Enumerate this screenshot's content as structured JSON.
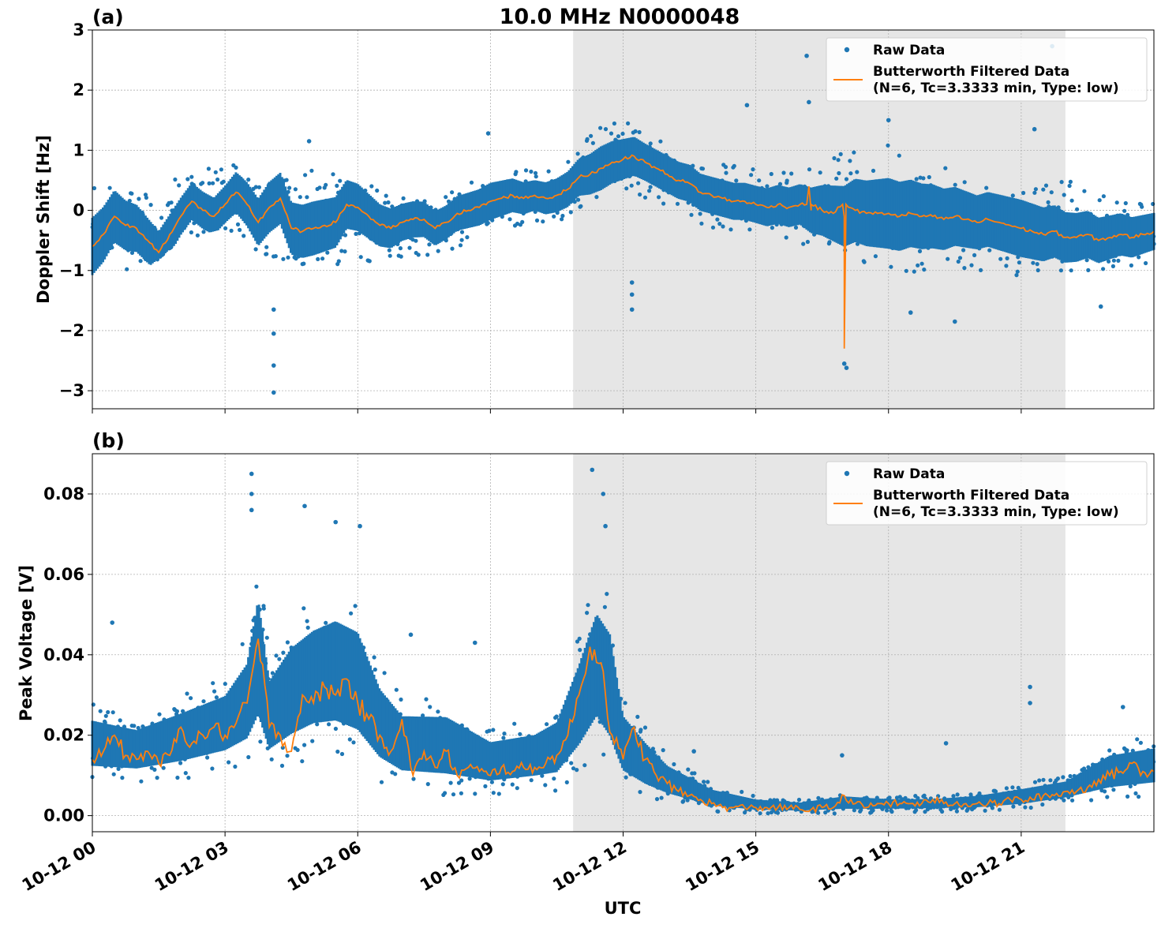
{
  "figure": {
    "title": "10.0 MHz N0000048",
    "xlabel": "UTC",
    "x_tick_labels": [
      "10-12 00",
      "10-12 03",
      "10-12 06",
      "10-12 09",
      "10-12 12",
      "10-12 15",
      "10-12 18",
      "10-12 21"
    ],
    "shaded_interval_hours": [
      10.87,
      22.0
    ]
  },
  "colors": {
    "raw": "#1f77b4",
    "filtered": "#ff7f0e",
    "shade": "#e6e6e6",
    "grid": "#b0b0b0"
  },
  "chart_data": [
    {
      "type": "scatter",
      "panel_label": "(a)",
      "title": "10.0 MHz N0000048",
      "xlabel": "",
      "ylabel": "Doppler Shift [Hz]",
      "x_unit": "hours UTC since 2024-10-12 00:00",
      "xlim": [
        0,
        24
      ],
      "ylim": [
        -3.3,
        3.0
      ],
      "y_ticks": [
        -3,
        -2,
        -1,
        0,
        1,
        2,
        3
      ],
      "y_tick_labels": [
        "−3",
        "−2",
        "−1",
        "0",
        "1",
        "2",
        "3"
      ],
      "grid": true,
      "legend_position": "top-right",
      "legend": [
        "Raw Data",
        "Butterworth Filtered Data\n(N=6, Tc=3.3333 min, Type: low)"
      ],
      "series": [
        {
          "name": "Butterworth Filtered Data (N=6, Tc=3.3333 min, Type: low)",
          "x": [
            0,
            0.25,
            0.5,
            0.75,
            1,
            1.25,
            1.5,
            1.75,
            2,
            2.25,
            2.5,
            2.75,
            3,
            3.25,
            3.5,
            3.75,
            4,
            4.25,
            4.5,
            4.75,
            5,
            5.25,
            5.5,
            5.75,
            6,
            6.25,
            6.5,
            6.75,
            7,
            7.25,
            7.5,
            7.75,
            8,
            8.25,
            8.5,
            8.75,
            9,
            9.25,
            9.5,
            9.75,
            10,
            10.25,
            10.5,
            10.75,
            11,
            11.25,
            11.5,
            11.75,
            12,
            12.25,
            12.5,
            12.75,
            13,
            13.25,
            13.5,
            13.75,
            14,
            14.25,
            14.5,
            14.75,
            15,
            15.25,
            15.5,
            15.75,
            16,
            16.25,
            16.5,
            16.75,
            17,
            17.25,
            17.5,
            17.75,
            18,
            18.25,
            18.5,
            18.75,
            19,
            19.25,
            19.5,
            19.75,
            20,
            20.25,
            20.5,
            20.75,
            21,
            21.25,
            21.5,
            21.75,
            22,
            22.25,
            22.5,
            22.75,
            23,
            23.25,
            23.5,
            23.75,
            24
          ],
          "y": [
            -0.6,
            -0.4,
            -0.1,
            -0.25,
            -0.3,
            -0.5,
            -0.7,
            -0.4,
            -0.1,
            0.15,
            0.0,
            -0.1,
            0.1,
            0.3,
            0.1,
            -0.2,
            0.05,
            0.2,
            -0.3,
            -0.35,
            -0.3,
            -0.25,
            -0.2,
            0.1,
            0.05,
            -0.1,
            -0.25,
            -0.3,
            -0.2,
            -0.15,
            -0.15,
            -0.3,
            -0.2,
            -0.05,
            0.0,
            0.05,
            0.15,
            0.2,
            0.25,
            0.2,
            0.25,
            0.2,
            0.25,
            0.35,
            0.55,
            0.6,
            0.7,
            0.8,
            0.85,
            0.9,
            0.8,
            0.7,
            0.6,
            0.5,
            0.45,
            0.3,
            0.25,
            0.2,
            0.15,
            0.15,
            0.1,
            0.05,
            0.1,
            0.05,
            0.1,
            0.0,
            0.0,
            -0.05,
            -0.1,
            0.0,
            -0.05,
            -0.05,
            -0.05,
            -0.1,
            -0.05,
            -0.1,
            -0.1,
            -0.15,
            -0.1,
            -0.15,
            -0.2,
            -0.15,
            -0.2,
            -0.25,
            -0.3,
            -0.35,
            -0.4,
            -0.35,
            -0.45,
            -0.45,
            -0.4,
            -0.5,
            -0.45,
            -0.4,
            -0.45,
            -0.4,
            -0.35
          ],
          "features": [
            {
              "x": 17.0,
              "y": -2.3,
              "description": "sharp negative spike near 17:00"
            },
            {
              "x": 16.2,
              "y": 0.4,
              "description": "small positive bump near 16:10"
            }
          ]
        },
        {
          "name": "Raw Data",
          "band_x": [
            0,
            1,
            2,
            3,
            4,
            5,
            6,
            7,
            8,
            9,
            10,
            10.5,
            11,
            11.5,
            12,
            12.5,
            13,
            14,
            15,
            16,
            17,
            18,
            19,
            20,
            21,
            22,
            23,
            24
          ],
          "band_low": [
            -1.1,
            -1.1,
            -0.5,
            -0.3,
            -0.9,
            -0.9,
            -0.9,
            -0.9,
            -0.7,
            -0.4,
            -0.2,
            -0.2,
            0.0,
            0.1,
            0.3,
            0.2,
            0.0,
            -0.3,
            -0.4,
            -0.6,
            -0.8,
            -1.0,
            -1.1,
            -1.0,
            -1.1,
            -1.0,
            -1.0,
            -0.9
          ],
          "band_high": [
            0.6,
            0.3,
            0.6,
            0.8,
            0.6,
            0.7,
            0.5,
            0.2,
            0.3,
            0.7,
            0.7,
            0.8,
            1.1,
            1.4,
            1.5,
            1.3,
            1.1,
            0.8,
            0.7,
            0.6,
            1.0,
            1.1,
            0.8,
            0.6,
            0.6,
            0.5,
            0.3,
            0.2
          ],
          "outliers": [
            {
              "x": 4.1,
              "y": -3.03
            },
            {
              "x": 4.1,
              "y": -2.58
            },
            {
              "x": 4.1,
              "y": -2.05
            },
            {
              "x": 4.1,
              "y": -1.65
            },
            {
              "x": 4.9,
              "y": 1.15
            },
            {
              "x": 8.95,
              "y": 1.28
            },
            {
              "x": 12.2,
              "y": -1.2
            },
            {
              "x": 12.2,
              "y": -1.4
            },
            {
              "x": 12.2,
              "y": -1.65
            },
            {
              "x": 14.8,
              "y": 1.75
            },
            {
              "x": 16.15,
              "y": 2.57
            },
            {
              "x": 16.2,
              "y": 1.8
            },
            {
              "x": 17.0,
              "y": -2.55
            },
            {
              "x": 17.05,
              "y": -2.62
            },
            {
              "x": 18.0,
              "y": 1.5
            },
            {
              "x": 18.5,
              "y": -1.7
            },
            {
              "x": 19.5,
              "y": -1.85
            },
            {
              "x": 21.7,
              "y": 2.73
            },
            {
              "x": 22.8,
              "y": -1.6
            },
            {
              "x": 21.3,
              "y": 1.35
            }
          ]
        }
      ]
    },
    {
      "type": "scatter",
      "panel_label": "(b)",
      "title": "",
      "xlabel": "UTC",
      "ylabel": "Peak Voltage [V]",
      "x_unit": "hours UTC since 2024-10-12 00:00",
      "xlim": [
        0,
        24
      ],
      "ylim": [
        -0.004,
        0.09
      ],
      "y_ticks": [
        0.0,
        0.02,
        0.04,
        0.06,
        0.08
      ],
      "y_tick_labels": [
        "0.00",
        "0.02",
        "0.04",
        "0.06",
        "0.08"
      ],
      "grid": true,
      "legend_position": "top-right",
      "legend": [
        "Raw Data",
        "Butterworth Filtered Data\n(N=6, Tc=3.3333 min, Type: low)"
      ],
      "series": [
        {
          "name": "Butterworth Filtered Data (N=6, Tc=3.3333 min, Type: low)",
          "x": [
            0,
            0.25,
            0.5,
            0.75,
            1,
            1.25,
            1.5,
            1.75,
            2,
            2.25,
            2.5,
            2.75,
            3,
            3.25,
            3.5,
            3.75,
            4,
            4.25,
            4.5,
            4.75,
            5,
            5.25,
            5.5,
            5.75,
            6,
            6.25,
            6.5,
            6.75,
            7,
            7.25,
            7.5,
            7.75,
            8,
            8.25,
            8.5,
            8.75,
            9,
            9.25,
            9.5,
            9.75,
            10,
            10.25,
            10.5,
            10.75,
            11,
            11.25,
            11.5,
            11.75,
            12,
            12.25,
            12.5,
            12.75,
            13,
            13.25,
            13.5,
            13.75,
            14,
            14.25,
            14.5,
            14.75,
            15,
            15.25,
            15.5,
            15.75,
            16,
            16.25,
            16.5,
            16.75,
            17,
            17.25,
            17.5,
            17.75,
            18,
            18.25,
            18.5,
            18.75,
            19,
            19.25,
            19.5,
            19.75,
            20,
            20.25,
            20.5,
            20.75,
            21,
            21.25,
            21.5,
            21.75,
            22,
            22.25,
            22.5,
            22.75,
            23,
            23.25,
            23.5,
            23.75,
            24
          ],
          "y": [
            0.014,
            0.016,
            0.02,
            0.015,
            0.014,
            0.016,
            0.013,
            0.015,
            0.022,
            0.018,
            0.02,
            0.022,
            0.02,
            0.023,
            0.028,
            0.044,
            0.022,
            0.02,
            0.016,
            0.03,
            0.028,
            0.032,
            0.03,
            0.034,
            0.028,
            0.024,
            0.02,
            0.016,
            0.024,
            0.01,
            0.016,
            0.012,
            0.016,
            0.01,
            0.012,
            0.011,
            0.01,
            0.012,
            0.011,
            0.012,
            0.012,
            0.013,
            0.015,
            0.02,
            0.03,
            0.042,
            0.038,
            0.02,
            0.014,
            0.022,
            0.014,
            0.01,
            0.008,
            0.006,
            0.005,
            0.004,
            0.003,
            0.002,
            0.002,
            0.002,
            0.002,
            0.002,
            0.002,
            0.002,
            0.0015,
            0.0015,
            0.002,
            0.002,
            0.005,
            0.003,
            0.002,
            0.003,
            0.003,
            0.003,
            0.003,
            0.003,
            0.004,
            0.003,
            0.003,
            0.003,
            0.003,
            0.003,
            0.003,
            0.004,
            0.004,
            0.004,
            0.005,
            0.005,
            0.006,
            0.006,
            0.007,
            0.009,
            0.01,
            0.011,
            0.013,
            0.011,
            0.011
          ]
        },
        {
          "name": "Raw Data",
          "band_x": [
            0,
            1,
            2,
            3,
            3.5,
            3.75,
            4,
            4.5,
            5,
            5.5,
            6,
            6.5,
            7,
            8,
            9,
            10,
            10.5,
            11,
            11.4,
            11.7,
            12,
            12.5,
            13,
            14,
            15,
            16,
            17,
            18,
            19,
            20,
            21,
            22,
            23,
            24
          ],
          "band_low": [
            0.008,
            0.008,
            0.009,
            0.011,
            0.012,
            0.014,
            0.01,
            0.012,
            0.014,
            0.014,
            0.012,
            0.008,
            0.006,
            0.005,
            0.005,
            0.006,
            0.006,
            0.01,
            0.015,
            0.01,
            0.006,
            0.004,
            0.003,
            0.001,
            0.0005,
            0.0005,
            0.0005,
            0.0008,
            0.001,
            0.001,
            0.0015,
            0.003,
            0.004,
            0.005
          ],
          "band_high": [
            0.028,
            0.025,
            0.03,
            0.035,
            0.045,
            0.065,
            0.04,
            0.05,
            0.055,
            0.058,
            0.055,
            0.038,
            0.03,
            0.03,
            0.022,
            0.024,
            0.028,
            0.045,
            0.06,
            0.055,
            0.03,
            0.022,
            0.015,
            0.008,
            0.005,
            0.004,
            0.006,
            0.005,
            0.005,
            0.006,
            0.008,
            0.01,
            0.018,
            0.02
          ],
          "outliers": [
            {
              "x": 3.6,
              "y": 0.085
            },
            {
              "x": 3.6,
              "y": 0.08
            },
            {
              "x": 3.6,
              "y": 0.076
            },
            {
              "x": 4.8,
              "y": 0.077
            },
            {
              "x": 5.5,
              "y": 0.073
            },
            {
              "x": 6.05,
              "y": 0.072
            },
            {
              "x": 11.3,
              "y": 0.086
            },
            {
              "x": 11.55,
              "y": 0.08
            },
            {
              "x": 11.6,
              "y": 0.072
            },
            {
              "x": 0.45,
              "y": 0.048
            },
            {
              "x": 7.2,
              "y": 0.045
            },
            {
              "x": 8.65,
              "y": 0.043
            },
            {
              "x": 13.6,
              "y": 0.016
            },
            {
              "x": 21.2,
              "y": 0.032
            },
            {
              "x": 21.2,
              "y": 0.028
            },
            {
              "x": 23.3,
              "y": 0.027
            },
            {
              "x": 16.95,
              "y": 0.015
            },
            {
              "x": 19.3,
              "y": 0.018
            }
          ]
        }
      ]
    }
  ]
}
